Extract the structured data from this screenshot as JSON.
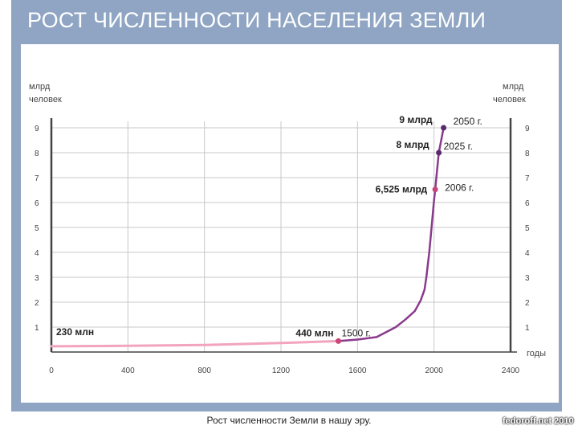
{
  "slide": {
    "title": "РОСТ ЧИСЛЕННОСТИ НАСЕЛЕНИЯ ЗЕМЛИ",
    "caption": "Рост численности Земли в нашу эру.",
    "watermark": "fedoroff.net 2010"
  },
  "colors": {
    "frame": "#8fa5c3",
    "early_line": "#f2a3bf",
    "late_line": "#8a3a8c",
    "marker_pink": "#c8447a",
    "marker_purple": "#5a2a6e",
    "grid": "#c8c8c8"
  },
  "chart_data": {
    "type": "line",
    "title": "",
    "ylabel_left": "млрд человек",
    "ylabel_right": "млрд человек",
    "xlabel": "годы",
    "xlim": [
      0,
      2400
    ],
    "ylim": [
      0,
      9
    ],
    "x_ticks": [
      "0",
      "400",
      "800",
      "1200",
      "1600",
      "2000",
      "2400"
    ],
    "y_ticks": [
      "1",
      "2",
      "3",
      "4",
      "5",
      "6",
      "7",
      "8",
      "9"
    ],
    "grid": true,
    "series": [
      {
        "values": [
          {
            "x": 0,
            "y": 0.23
          },
          {
            "x": 400,
            "y": 0.25
          },
          {
            "x": 800,
            "y": 0.28
          },
          {
            "x": 1200,
            "y": 0.36
          },
          {
            "x": 1500,
            "y": 0.44
          },
          {
            "x": 1600,
            "y": 0.5
          },
          {
            "x": 1700,
            "y": 0.6
          },
          {
            "x": 1800,
            "y": 1.0
          },
          {
            "x": 1850,
            "y": 1.3
          },
          {
            "x": 1900,
            "y": 1.65
          },
          {
            "x": 1930,
            "y": 2.07
          },
          {
            "x": 1950,
            "y": 2.5
          },
          {
            "x": 1960,
            "y": 3.0
          },
          {
            "x": 1975,
            "y": 4.0
          },
          {
            "x": 1987,
            "y": 5.0
          },
          {
            "x": 1999,
            "y": 6.0
          },
          {
            "x": 2006,
            "y": 6.525
          },
          {
            "x": 2025,
            "y": 8.0
          },
          {
            "x": 2050,
            "y": 9.0
          }
        ]
      }
    ],
    "annotations": [
      {
        "x": 0,
        "y": 0.23,
        "value_label": "230 млн",
        "year_label": "",
        "style": "pink"
      },
      {
        "x": 1500,
        "y": 0.44,
        "value_label": "440 млн",
        "year_label": "1500 г.",
        "style": "pink"
      },
      {
        "x": 2006,
        "y": 6.525,
        "value_label": "6,525 млрд",
        "year_label": "2006 г.",
        "style": "pink"
      },
      {
        "x": 2025,
        "y": 8.0,
        "value_label": "8 млрд",
        "year_label": "2025 г.",
        "style": "purple"
      },
      {
        "x": 2050,
        "y": 9.0,
        "value_label": "9 млрд",
        "year_label": "2050 г.",
        "style": "purple"
      }
    ]
  }
}
